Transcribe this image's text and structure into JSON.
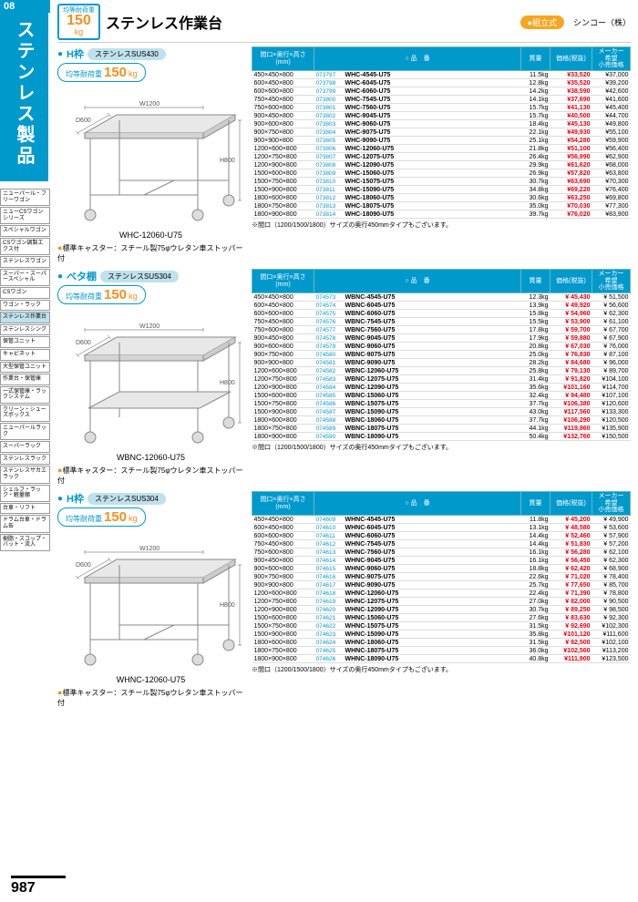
{
  "page_number": "987",
  "category_number": "08",
  "category_title": "ステンレス製品",
  "header": {
    "load_label": "均等耐荷重",
    "load_value": "150",
    "load_unit": "kg",
    "title": "ステンレス作業台",
    "brand_tag": "●組立式",
    "brand": "シンコー（株）"
  },
  "sidebar_items": [
    "ニューパール・フリーワゴン",
    "ニューCSワゴンシリーズ",
    "スペシャルワゴン",
    "CSワゴン調製エクス付",
    "ステンレスワゴン",
    "スーパー・スーパースペシャル",
    "CSワゴン",
    "ワゴン・ラック",
    "ステンレス作業台",
    "ステンレスシンク",
    "保管ユニット",
    "キャビネット",
    "大型保管ユニット",
    "作業台・保管庫",
    "一式保管庫・ラックシステム",
    "クリーン・シューズボックス",
    "ニューパールラック",
    "スーパーラック",
    "ステンレスラック",
    "ステンレスサカエラック",
    "シェルフ・ラック・軽量棚",
    "台車・リフト",
    "ドラム台車・ドラム缶",
    "樹脂・スコップ・バット・流入"
  ],
  "sidebar_active_index": 8,
  "sections": [
    {
      "label": "H枠",
      "material": "ステンレスSUS430",
      "load": "150",
      "model_name": "WHC-12060-U75",
      "caster_note": "●標準キャスター：スチール製75φウレタン車ストッパー付",
      "footnote": "※間口（1200/1500/1800）サイズの奥行450mmタイプもございます。",
      "has_shelf": false,
      "rows": [
        {
          "dim": "450×450×800",
          "code": "073797",
          "model": "WHC-4545-U75",
          "mass": "11.5kg",
          "price": "¥33,520",
          "msrp": "¥37,000"
        },
        {
          "dim": "600×450×800",
          "code": "073798",
          "model": "WHC-6045-U75",
          "mass": "12.8kg",
          "price": "¥35,520",
          "msrp": "¥39,200"
        },
        {
          "dim": "600×600×800",
          "code": "073799",
          "model": "WHC-6060-U75",
          "mass": "14.2kg",
          "price": "¥38,590",
          "msrp": "¥42,600"
        },
        {
          "dim": "750×450×800",
          "code": "073800",
          "model": "WHC-7545-U75",
          "mass": "14.1kg",
          "price": "¥37,690",
          "msrp": "¥41,600"
        },
        {
          "dim": "750×600×800",
          "code": "073801",
          "model": "WHC-7560-U75",
          "mass": "15.7kg",
          "price": "¥41,130",
          "msrp": "¥45,400"
        },
        {
          "dim": "900×450×800",
          "code": "073802",
          "model": "WHC-9045-U75",
          "mass": "15.7kg",
          "price": "¥40,500",
          "msrp": "¥44,700"
        },
        {
          "dim": "900×600×800",
          "code": "073803",
          "model": "WHC-9060-U75",
          "mass": "18.4kg",
          "price": "¥45,130",
          "msrp": "¥49,800"
        },
        {
          "dim": "900×750×800",
          "code": "073804",
          "model": "WHC-9075-U75",
          "mass": "22.1kg",
          "price": "¥49,930",
          "msrp": "¥55,100"
        },
        {
          "dim": "900×900×800",
          "code": "073805",
          "model": "WHC-9090-U75",
          "mass": "25.1kg",
          "price": "¥54,280",
          "msrp": "¥59,900"
        },
        {
          "dim": "1200×600×800",
          "code": "073806",
          "model": "WHC-12060-U75",
          "mass": "21.8kg",
          "price": "¥51,100",
          "msrp": "¥56,400"
        },
        {
          "dim": "1200×750×800",
          "code": "073807",
          "model": "WHC-12075-U75",
          "mass": "26.4kg",
          "price": "¥56,990",
          "msrp": "¥62,900"
        },
        {
          "dim": "1200×900×800",
          "code": "073808",
          "model": "WHC-12090-U75",
          "mass": "29.9kg",
          "price": "¥61,620",
          "msrp": "¥68,000"
        },
        {
          "dim": "1500×600×800",
          "code": "073809",
          "model": "WHC-15060-U75",
          "mass": "26.9kg",
          "price": "¥57,820",
          "msrp": "¥63,800"
        },
        {
          "dim": "1500×750×800",
          "code": "073810",
          "model": "WHC-15075-U75",
          "mass": "30.7kg",
          "price": "¥63,690",
          "msrp": "¥70,300"
        },
        {
          "dim": "1500×900×800",
          "code": "073811",
          "model": "WHC-15090-U75",
          "mass": "34.8kg",
          "price": "¥69,220",
          "msrp": "¥76,400"
        },
        {
          "dim": "1800×600×800",
          "code": "073812",
          "model": "WHC-18060-U75",
          "mass": "30.6kg",
          "price": "¥63,250",
          "msrp": "¥69,800"
        },
        {
          "dim": "1800×750×800",
          "code": "073813",
          "model": "WHC-18075-U75",
          "mass": "35.0kg",
          "price": "¥70,030",
          "msrp": "¥77,300"
        },
        {
          "dim": "1800×900×800",
          "code": "073814",
          "model": "WHC-18090-U75",
          "mass": "39.7kg",
          "price": "¥76,020",
          "msrp": "¥83,900"
        }
      ]
    },
    {
      "label": "ベタ棚",
      "material": "ステンレスSUS304",
      "load": "150",
      "model_name": "WBNC-12060-U75",
      "caster_note": "●標準キャスター：スチール製75φウレタン車ストッパー付",
      "footnote": "※間口（1200/1500/1800）サイズの奥行450mmタイプもございます。",
      "has_shelf": true,
      "rows": [
        {
          "dim": "450×450×800",
          "code": "074573",
          "model": "WBNC-4545-U75",
          "mass": "12.3kg",
          "price": "¥ 45,430",
          "msrp": "¥ 51,500"
        },
        {
          "dim": "600×450×800",
          "code": "074574",
          "model": "WBNC-6045-U75",
          "mass": "13.9kg",
          "price": "¥ 49,920",
          "msrp": "¥ 56,600"
        },
        {
          "dim": "600×600×800",
          "code": "074575",
          "model": "WBNC-6060-U75",
          "mass": "15.8kg",
          "price": "¥ 54,960",
          "msrp": "¥ 62,300"
        },
        {
          "dim": "750×450×800",
          "code": "074576",
          "model": "WBNC-7545-U75",
          "mass": "15.5kg",
          "price": "¥ 53,900",
          "msrp": "¥ 61,100"
        },
        {
          "dim": "750×600×800",
          "code": "074577",
          "model": "WBNC-7560-U75",
          "mass": "17.8kg",
          "price": "¥ 59,700",
          "msrp": "¥ 67,700"
        },
        {
          "dim": "900×450×800",
          "code": "074578",
          "model": "WBNC-9045-U75",
          "mass": "17.9kg",
          "price": "¥ 59,880",
          "msrp": "¥ 67,900"
        },
        {
          "dim": "900×600×800",
          "code": "074579",
          "model": "WBNC-9060-U75",
          "mass": "20.8kg",
          "price": "¥ 67,030",
          "msrp": "¥ 76,000"
        },
        {
          "dim": "900×750×800",
          "code": "074580",
          "model": "WBNC-9075-U75",
          "mass": "25.0kg",
          "price": "¥ 76,830",
          "msrp": "¥ 87,100"
        },
        {
          "dim": "900×900×800",
          "code": "074581",
          "model": "WBNC-9090-U75",
          "mass": "28.2kg",
          "price": "¥ 84,680",
          "msrp": "¥ 96,000"
        },
        {
          "dim": "1200×600×800",
          "code": "074582",
          "model": "WBNC-12060-U75",
          "mass": "25.8kg",
          "price": "¥ 79,130",
          "msrp": "¥ 89,700"
        },
        {
          "dim": "1200×750×800",
          "code": "074583",
          "model": "WBNC-12075-U75",
          "mass": "31.4kg",
          "price": "¥ 91,820",
          "msrp": "¥104,100"
        },
        {
          "dim": "1200×900×800",
          "code": "074584",
          "model": "WBNC-12090-U75",
          "mass": "35.6kg",
          "price": "¥101,160",
          "msrp": "¥114,700"
        },
        {
          "dim": "1500×600×800",
          "code": "074585",
          "model": "WBNC-15060-U75",
          "mass": "32.4kg",
          "price": "¥ 94,480",
          "msrp": "¥107,100"
        },
        {
          "dim": "1500×750×800",
          "code": "074586",
          "model": "WBNC-15075-U75",
          "mass": "37.7kg",
          "price": "¥106,380",
          "msrp": "¥120,600"
        },
        {
          "dim": "1500×900×800",
          "code": "074587",
          "model": "WBNC-15090-U75",
          "mass": "43.0kg",
          "price": "¥117,560",
          "msrp": "¥133,300"
        },
        {
          "dim": "1800×600×800",
          "code": "074588",
          "model": "WBNC-18060-U75",
          "mass": "37.7kg",
          "price": "¥106,290",
          "msrp": "¥120,500"
        },
        {
          "dim": "1800×750×800",
          "code": "074589",
          "model": "WBNC-18075-U75",
          "mass": "44.1kg",
          "price": "¥119,860",
          "msrp": "¥135,900"
        },
        {
          "dim": "1800×900×800",
          "code": "074590",
          "model": "WBNC-18090-U75",
          "mass": "50.4kg",
          "price": "¥132,760",
          "msrp": "¥150,500"
        }
      ]
    },
    {
      "label": "H枠",
      "material": "ステンレスSUS304",
      "load": "150",
      "model_name": "WHNC-12060-U75",
      "caster_note": "●標準キャスター：スチール製75φウレタン車ストッパー付",
      "footnote": "※間口（1200/1500/1800）サイズの奥行450mmタイプもございます。",
      "has_shelf": false,
      "rows": [
        {
          "dim": "450×450×800",
          "code": "074609",
          "model": "WHNC-4545-U75",
          "mass": "11.8kg",
          "price": "¥ 45,200",
          "msrp": "¥ 49,900"
        },
        {
          "dim": "600×450×800",
          "code": "074610",
          "model": "WHNC-6045-U75",
          "mass": "13.1kg",
          "price": "¥ 48,580",
          "msrp": "¥ 53,600"
        },
        {
          "dim": "600×600×800",
          "code": "074611",
          "model": "WHNC-6060-U75",
          "mass": "14.4kg",
          "price": "¥ 52,460",
          "msrp": "¥ 57,900"
        },
        {
          "dim": "750×450×800",
          "code": "074612",
          "model": "WHNC-7545-U75",
          "mass": "14.4kg",
          "price": "¥ 51,830",
          "msrp": "¥ 57,200"
        },
        {
          "dim": "750×600×800",
          "code": "074613",
          "model": "WHNC-7560-U75",
          "mass": "16.1kg",
          "price": "¥ 56,280",
          "msrp": "¥ 62,100"
        },
        {
          "dim": "900×450×800",
          "code": "074614",
          "model": "WHNC-9045-U75",
          "mass": "16.1kg",
          "price": "¥ 56,450",
          "msrp": "¥ 62,300"
        },
        {
          "dim": "900×600×800",
          "code": "074615",
          "model": "WHNC-9060-U75",
          "mass": "18.8kg",
          "price": "¥ 62,420",
          "msrp": "¥ 68,900"
        },
        {
          "dim": "900×750×800",
          "code": "074616",
          "model": "WHNC-9075-U75",
          "mass": "22.6kg",
          "price": "¥ 71,020",
          "msrp": "¥ 78,400"
        },
        {
          "dim": "900×900×800",
          "code": "074617",
          "model": "WHNC-9090-U75",
          "mass": "25.7kg",
          "price": "¥ 77,650",
          "msrp": "¥ 85,700"
        },
        {
          "dim": "1200×600×800",
          "code": "074618",
          "model": "WHNC-12060-U75",
          "mass": "22.4kg",
          "price": "¥ 71,390",
          "msrp": "¥ 78,800"
        },
        {
          "dim": "1200×750×800",
          "code": "074619",
          "model": "WHNC-12075-U75",
          "mass": "27.0kg",
          "price": "¥ 82,000",
          "msrp": "¥ 90,500"
        },
        {
          "dim": "1200×900×800",
          "code": "074620",
          "model": "WHNC-12090-U75",
          "mass": "30.7kg",
          "price": "¥ 89,250",
          "msrp": "¥ 98,500"
        },
        {
          "dim": "1500×600×800",
          "code": "074621",
          "model": "WHNC-15060-U75",
          "mass": "27.6kg",
          "price": "¥ 83,630",
          "msrp": "¥ 92,300"
        },
        {
          "dim": "1500×750×800",
          "code": "074622",
          "model": "WHNC-15075-U75",
          "mass": "31.5kg",
          "price": "¥ 92,690",
          "msrp": "¥102,300"
        },
        {
          "dim": "1500×900×800",
          "code": "074623",
          "model": "WHNC-15090-U75",
          "mass": "35.8kg",
          "price": "¥101,120",
          "msrp": "¥111,600"
        },
        {
          "dim": "1800×600×800",
          "code": "074624",
          "model": "WHNC-18060-U75",
          "mass": "31.5kg",
          "price": "¥ 92,500",
          "msrp": "¥102,100"
        },
        {
          "dim": "1800×750×800",
          "code": "074625",
          "model": "WHNC-18075-U75",
          "mass": "36.0kg",
          "price": "¥102,560",
          "msrp": "¥113,200"
        },
        {
          "dim": "1800×900×800",
          "code": "074626",
          "model": "WHNC-18090-U75",
          "mass": "40.8kg",
          "price": "¥111,900",
          "msrp": "¥123,500"
        }
      ]
    }
  ],
  "table_headers": {
    "dim": "間口×奥行×高さ\n(mm)",
    "model": "○ 品　番",
    "mass": "質量",
    "price": "価格(税抜)",
    "msrp": "メーカー\n希望\n小売価格"
  },
  "diagram_labels": {
    "width": "W1200",
    "depth": "D600",
    "height": "H800"
  }
}
